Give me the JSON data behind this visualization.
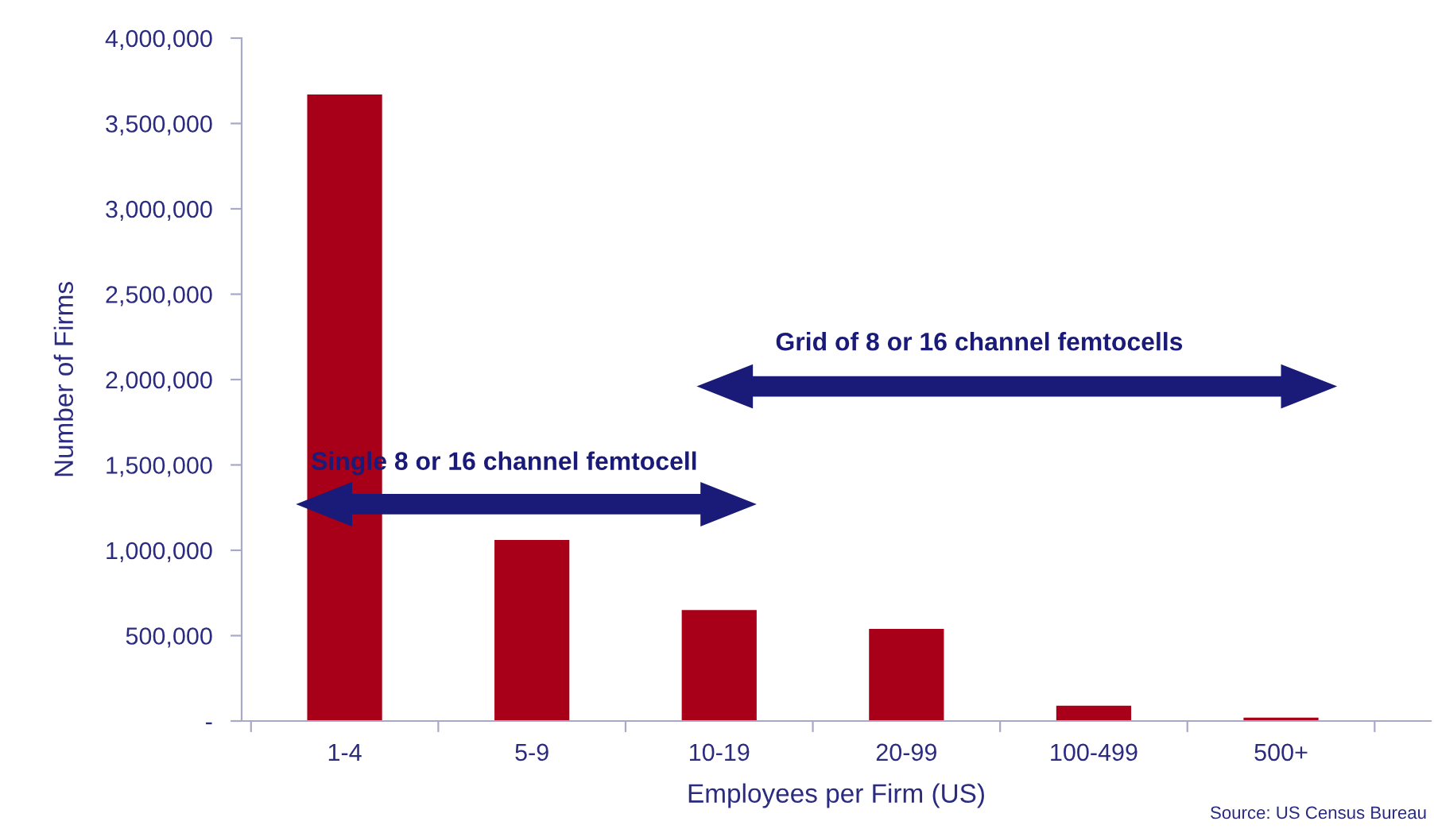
{
  "chart_data": {
    "type": "bar",
    "xlabel": "Employees per Firm (US)",
    "ylabel": "Number of Firms",
    "categories": [
      "1-4",
      "5-9",
      "10-19",
      "20-99",
      "100-499",
      "500+"
    ],
    "values": [
      3670000,
      1060000,
      650000,
      540000,
      90000,
      20000
    ],
    "color": "#a80018",
    "ylim": [
      0,
      4000000
    ],
    "yticks": [
      {
        "value": 0,
        "label": "-"
      },
      {
        "value": 500000,
        "label": "500,000"
      },
      {
        "value": 1000000,
        "label": "1,000,000"
      },
      {
        "value": 1500000,
        "label": "1,500,000"
      },
      {
        "value": 2000000,
        "label": "2,000,000"
      },
      {
        "value": 2500000,
        "label": "2,500,000"
      },
      {
        "value": 3000000,
        "label": "3,000,000"
      },
      {
        "value": 3500000,
        "label": "3,500,000"
      },
      {
        "value": 4000000,
        "label": "4,000,000"
      }
    ],
    "grid": false,
    "annotations": [
      "Single 8 or 16 channel femtocell",
      "Grid of 8 or 16 channel femtocells",
      "Source: US Census Bureau"
    ]
  }
}
